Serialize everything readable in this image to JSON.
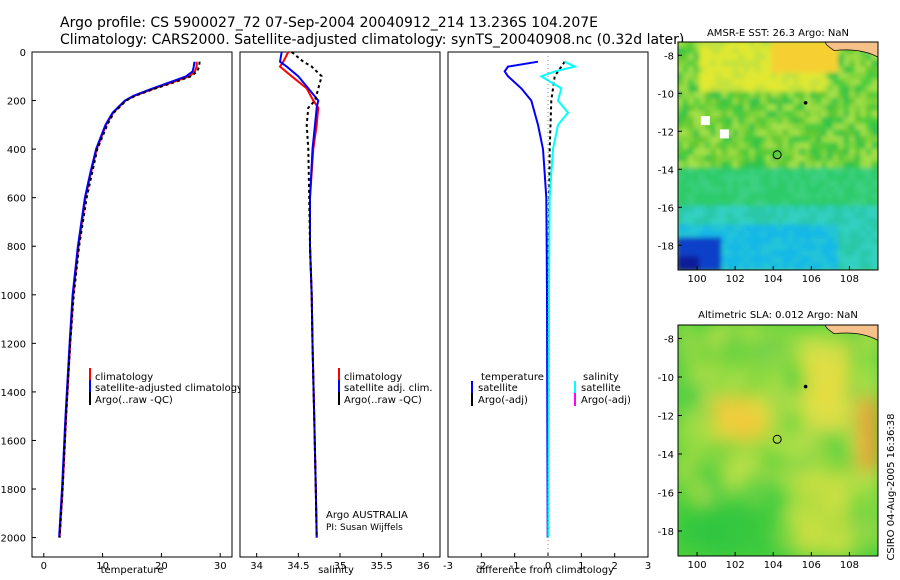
{
  "header": {
    "line1": "Argo profile: CS 5900027_72 07-Sep-2004 20040912_214 13.236S 104.207E",
    "line2": "Climatology: CARS2000. Satellite-adjusted climatology: synTS_20040908.nc (0.32d later)"
  },
  "footer_vertical": "CSIRO 04-Aug-2005 16:36:38",
  "colors": {
    "red": "#ff0000",
    "blue": "#0000ff",
    "black": "#000000",
    "cyan": "#00ffff",
    "magenta": "#ff00ff"
  },
  "chart_data": [
    {
      "type": "line",
      "id": "temperature",
      "xlabel": "temperature",
      "ylabel": "",
      "xlim": [
        -2,
        32
      ],
      "ylim": [
        2080,
        0
      ],
      "xticks": [
        0,
        10,
        20,
        30
      ],
      "yticks": [
        0,
        200,
        400,
        600,
        800,
        1000,
        1200,
        1400,
        1600,
        1800,
        2000
      ],
      "legend": [
        "climatology",
        "satellite-adjusted climatology",
        "Argo(..raw -QC)"
      ],
      "series": [
        {
          "name": "climatology",
          "color": "red",
          "depth": [
            40,
            60,
            80,
            100,
            120,
            150,
            180,
            200,
            250,
            300,
            400,
            500,
            600,
            800,
            1000,
            1200,
            1500,
            1800,
            2000
          ],
          "values": [
            26.0,
            26.0,
            25.7,
            24.8,
            22.5,
            18.8,
            15.5,
            13.9,
            11.8,
            10.6,
            9.0,
            8.0,
            7.1,
            5.9,
            5.0,
            4.5,
            3.8,
            3.2,
            2.7
          ]
        },
        {
          "name": "satellite-adjusted climatology",
          "color": "blue",
          "depth": [
            40,
            60,
            80,
            100,
            120,
            150,
            180,
            200,
            250,
            300,
            400,
            500,
            600,
            800,
            1000,
            1200,
            1500,
            1800,
            2000
          ],
          "values": [
            25.6,
            25.5,
            25.3,
            24.2,
            22.0,
            18.5,
            15.3,
            13.8,
            11.7,
            10.5,
            8.9,
            7.9,
            7.0,
            5.8,
            4.9,
            4.4,
            3.7,
            3.1,
            2.6
          ]
        },
        {
          "name": "Argo(..raw -QC)",
          "color": "black",
          "depth": [
            40,
            60,
            80,
            100,
            120,
            150,
            180,
            200,
            250,
            300,
            400,
            500,
            600,
            800,
            1000,
            1200,
            1500,
            1800,
            2000
          ],
          "values": [
            26.5,
            26.4,
            26.1,
            25.0,
            22.8,
            19.0,
            15.6,
            14.0,
            11.9,
            10.8,
            9.1,
            8.2,
            7.3,
            6.0,
            5.1,
            4.5,
            3.8,
            3.2,
            2.7
          ]
        }
      ]
    },
    {
      "type": "line",
      "id": "salinity",
      "xlabel": "salinity",
      "ylabel": "",
      "xlim": [
        33.8,
        36.2
      ],
      "ylim": [
        2080,
        0
      ],
      "xticks": [
        34,
        34.5,
        35,
        35.5,
        36
      ],
      "legend": [
        "climatology",
        "satellite adj. clim.",
        "Argo(..raw -QC)"
      ],
      "annotation": [
        "Argo AUSTRALIA",
        "PI: Susan Wijffels"
      ],
      "series": [
        {
          "name": "climatology",
          "color": "red",
          "depth": [
            0,
            40,
            60,
            100,
            150,
            200,
            230,
            300,
            400,
            600,
            800,
            1000,
            1200,
            1500,
            1800,
            2000
          ],
          "values": [
            34.38,
            34.32,
            34.28,
            34.42,
            34.6,
            34.68,
            34.74,
            34.72,
            34.68,
            34.64,
            34.64,
            34.66,
            34.67,
            34.69,
            34.71,
            34.72
          ]
        },
        {
          "name": "satellite adj. clim.",
          "color": "blue",
          "depth": [
            0,
            40,
            60,
            100,
            150,
            200,
            230,
            300,
            400,
            600,
            800,
            1000,
            1200,
            1500,
            1800,
            2000
          ],
          "values": [
            34.3,
            34.28,
            34.36,
            34.5,
            34.62,
            34.74,
            34.72,
            34.7,
            34.67,
            34.64,
            34.64,
            34.66,
            34.67,
            34.69,
            34.71,
            34.72
          ]
        },
        {
          "name": "Argo(..raw -QC)",
          "color": "black",
          "depth": [
            0,
            40,
            60,
            100,
            150,
            200,
            230,
            300,
            400,
            600,
            800,
            1000,
            1200,
            1500,
            1800,
            2000
          ],
          "values": [
            34.42,
            34.56,
            34.66,
            34.78,
            34.74,
            34.7,
            34.62,
            34.6,
            34.62,
            34.63,
            34.64,
            34.66,
            34.67,
            34.69,
            34.71,
            34.72
          ]
        }
      ]
    },
    {
      "type": "line",
      "id": "difference",
      "xlabel": "difference from climatology",
      "ylabel": "",
      "xlim": [
        -3,
        3
      ],
      "ylim": [
        2080,
        0
      ],
      "xticks": [
        -3,
        -2,
        -1,
        0,
        1,
        2,
        3
      ],
      "legend_left_title": "temperature",
      "legend_left": [
        "satellite",
        "Argo(-adj)"
      ],
      "legend_right_title": "salinity",
      "legend_right": [
        "satellite",
        "Argo(-adj)"
      ],
      "series": [
        {
          "name": "temperature satellite",
          "color": "blue",
          "depth": [
            40,
            60,
            80,
            100,
            150,
            200,
            300,
            400,
            500,
            600,
            800,
            1000,
            1500,
            2000
          ],
          "values": [
            -0.3,
            -1.2,
            -1.3,
            -1.2,
            -0.8,
            -0.5,
            -0.3,
            -0.15,
            -0.1,
            -0.05,
            -0.04,
            -0.03,
            -0.02,
            -0.01
          ]
        },
        {
          "name": "temperature Argo(-adj)",
          "color": "black",
          "depth": [
            40,
            100,
            200,
            400,
            800,
            1200,
            2000
          ],
          "values": [
            0.5,
            0.2,
            0.1,
            0.05,
            0.02,
            0.02,
            0.01
          ]
        },
        {
          "name": "salinity satellite",
          "color": "cyan",
          "depth": [
            40,
            60,
            80,
            100,
            150,
            200,
            250,
            300,
            400,
            500,
            600,
            800,
            1000,
            1500,
            2000
          ],
          "values": [
            0.5,
            0.8,
            0.2,
            -0.2,
            0.4,
            0.3,
            0.6,
            0.3,
            0.15,
            0.1,
            0.05,
            0.04,
            0.03,
            0.02,
            0.01
          ]
        },
        {
          "name": "salinity Argo(-adj)",
          "color": "magenta",
          "depth": [],
          "values": []
        }
      ]
    },
    {
      "type": "heatmap",
      "id": "sst_map",
      "title": "AMSR-E SST: 26.3 Argo: NaN",
      "xlim": [
        99,
        109.5
      ],
      "ylim": [
        -19.3,
        -7.3
      ],
      "xticks": [
        100,
        102,
        104,
        106,
        108
      ],
      "yticks": [
        -8,
        -10,
        -12,
        -14,
        -16,
        -18
      ],
      "argo_position": [
        104.207,
        -13.236
      ],
      "track_point": [
        105.7,
        -10.5
      ]
    },
    {
      "type": "heatmap",
      "id": "sla_map",
      "title": "Altimetric SLA: 0.012 Argo: NaN",
      "xlim": [
        99,
        109.5
      ],
      "ylim": [
        -19.3,
        -7.3
      ],
      "xticks": [
        100,
        102,
        104,
        106,
        108
      ],
      "yticks": [
        -8,
        -10,
        -12,
        -14,
        -16,
        -18
      ],
      "argo_position": [
        104.207,
        -13.236
      ],
      "track_point": [
        105.7,
        -10.5
      ]
    }
  ]
}
